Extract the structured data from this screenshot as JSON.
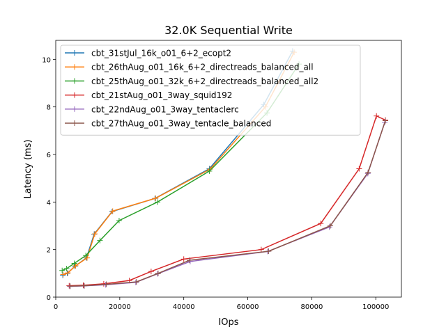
{
  "chart_data": {
    "type": "line",
    "title": "32.0K  Sequential Write",
    "xlabel": "IOps",
    "ylabel": "Latency (ms)",
    "xlim": [
      0,
      108000
    ],
    "ylim": [
      0,
      10.8
    ],
    "xticks": [
      0,
      20000,
      40000,
      60000,
      80000,
      100000
    ],
    "yticks": [
      0,
      2,
      4,
      6,
      8,
      10
    ],
    "grid": false,
    "legend_position": "top-left",
    "marker": "+",
    "series": [
      {
        "name": "cbt_31stJul_16k_o01_6+2_ecopt2",
        "color": "#1f77b4",
        "x": [
          2200,
          3600,
          6000,
          9600,
          12000,
          17600,
          31000,
          48000,
          65000,
          74000
        ],
        "y": [
          0.92,
          1.0,
          1.3,
          1.65,
          2.65,
          3.6,
          4.15,
          5.4,
          8.1,
          10.35
        ]
      },
      {
        "name": "cbt_26thAug_o01_16k_6+2_directreads_balanced_all",
        "color": "#ff7f0e",
        "x": [
          2300,
          3800,
          6200,
          9800,
          12200,
          17800,
          31200,
          48200,
          65500,
          74500
        ],
        "y": [
          0.95,
          1.02,
          1.32,
          1.65,
          2.66,
          3.62,
          4.16,
          5.38,
          8.0,
          10.3
        ]
      },
      {
        "name": "cbt_25thAug_o01_32k_6+2_directreads_balanced_all2",
        "color": "#2ca02c",
        "x": [
          2000,
          3400,
          5800,
          9400,
          13800,
          19800,
          31800,
          48000,
          66000,
          76000
        ],
        "y": [
          1.12,
          1.2,
          1.42,
          1.75,
          2.38,
          3.22,
          4.0,
          5.3,
          7.75,
          9.8
        ]
      },
      {
        "name": "cbt_21stAug_o01_3way_squid192",
        "color": "#d62728",
        "x": [
          4200,
          8600,
          15000,
          23000,
          29800,
          40000,
          64200,
          82800,
          94800,
          100200,
          103000
        ],
        "y": [
          0.48,
          0.5,
          0.56,
          0.7,
          1.08,
          1.6,
          2.0,
          3.1,
          5.4,
          7.62,
          7.45
        ]
      },
      {
        "name": "cbt_22ndAug_o01_3way_tentaclerc",
        "color": "#9467bd",
        "x": [
          4400,
          8800,
          15600,
          25000,
          31800,
          42000,
          66200,
          85500,
          97500,
          102800
        ],
        "y": [
          0.45,
          0.47,
          0.52,
          0.62,
          0.98,
          1.5,
          1.92,
          2.95,
          5.2,
          7.35
        ]
      },
      {
        "name": "cbt_27thAug_o01_3way_tentacle_balanced",
        "color": "#8c564b",
        "x": [
          4500,
          8900,
          15800,
          25200,
          32000,
          41800,
          66500,
          85800,
          97600,
          103000
        ],
        "y": [
          0.46,
          0.48,
          0.54,
          0.64,
          1.0,
          1.55,
          1.93,
          3.0,
          5.25,
          7.42
        ]
      }
    ]
  }
}
